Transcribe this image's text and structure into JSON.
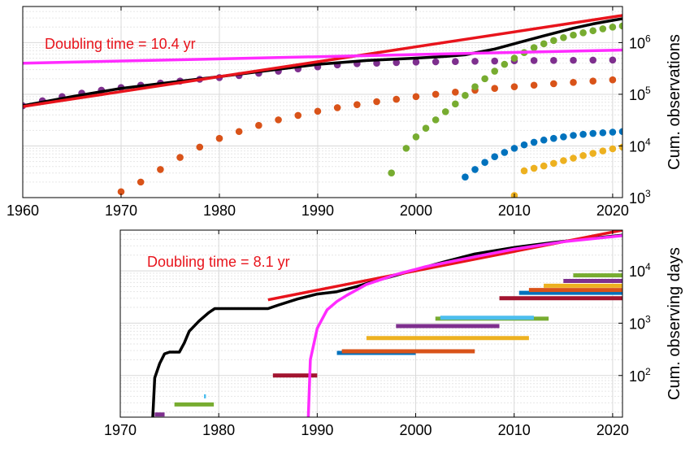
{
  "chart_data": [
    {
      "type": "scatter",
      "title": "",
      "xlabel": "",
      "ylabel": "Cum. observations",
      "xlim": [
        1960,
        2021
      ],
      "ylim": [
        1000,
        5000000
      ],
      "yscale": "log",
      "grid": true,
      "xticks": [
        "1960",
        "1970",
        "1980",
        "1990",
        "2000",
        "2010",
        "2020"
      ],
      "yticks": [
        {
          "base": "10",
          "exp": "3"
        },
        {
          "base": "10",
          "exp": "4"
        },
        {
          "base": "10",
          "exp": "5"
        },
        {
          "base": "10",
          "exp": "6"
        }
      ],
      "annotation": "Doubling time = 10.4 yr",
      "series": [
        {
          "color": "#7e2f8e",
          "kind": "points",
          "x": [
            1960,
            1962,
            1964,
            1966,
            1968,
            1970,
            1972,
            1974,
            1976,
            1978,
            1980,
            1982,
            1984,
            1986,
            1988,
            1990,
            1992,
            1994,
            1996,
            1998,
            2000,
            2002,
            2004,
            2006,
            2008,
            2010,
            2012,
            2014,
            2016,
            2018,
            2020
          ],
          "y": [
            60000,
            75000,
            90000,
            105000,
            120000,
            135000,
            150000,
            165000,
            180000,
            195000,
            210000,
            230000,
            255000,
            280000,
            310000,
            340000,
            370000,
            390000,
            400000,
            410000,
            420000,
            425000,
            430000,
            435000,
            440000,
            445000,
            450000,
            452000,
            455000,
            458000,
            460000
          ]
        },
        {
          "color": "#d95319",
          "kind": "points",
          "x": [
            1970,
            1972,
            1974,
            1976,
            1978,
            1980,
            1982,
            1984,
            1986,
            1988,
            1990,
            1992,
            1994,
            1996,
            1998,
            2000,
            2002,
            2004,
            2006,
            2008,
            2010,
            2012,
            2014,
            2016,
            2018,
            2020
          ],
          "y": [
            1300,
            2000,
            3500,
            6000,
            9500,
            14000,
            19000,
            25000,
            32000,
            39000,
            47000,
            55000,
            63000,
            72000,
            80000,
            90000,
            100000,
            110000,
            120000,
            130000,
            140000,
            150000,
            160000,
            170000,
            180000,
            190000
          ]
        },
        {
          "color": "#77ac30",
          "kind": "points",
          "x": [
            1997.5,
            1999,
            2000,
            2001,
            2002,
            2003,
            2004,
            2005,
            2006,
            2007,
            2008,
            2009,
            2010,
            2011,
            2012,
            2013,
            2014,
            2015,
            2016,
            2017,
            2018,
            2019,
            2020,
            2021
          ],
          "y": [
            3000,
            9000,
            15000,
            22000,
            32000,
            46000,
            65000,
            95000,
            140000,
            200000,
            280000,
            380000,
            500000,
            640000,
            800000,
            950000,
            1100000,
            1250000,
            1400000,
            1550000,
            1700000,
            1850000,
            2000000,
            2100000
          ]
        },
        {
          "color": "#0072bd",
          "kind": "points",
          "x": [
            2005,
            2006,
            2007,
            2008,
            2009,
            2010,
            2011,
            2012,
            2013,
            2014,
            2015,
            2016,
            2017,
            2018,
            2019,
            2020,
            2021
          ],
          "y": [
            2500,
            3500,
            4800,
            6200,
            7500,
            9000,
            10500,
            11800,
            13000,
            14000,
            15000,
            16000,
            16800,
            17500,
            18000,
            18500,
            19000
          ]
        },
        {
          "color": "#edb120",
          "kind": "points",
          "x": [
            2010,
            2011,
            2012,
            2013,
            2014,
            2015,
            2016,
            2017,
            2018,
            2019,
            2020,
            2021
          ],
          "y": [
            1100,
            3300,
            3700,
            4100,
            4600,
            5200,
            5800,
            6500,
            7200,
            8000,
            8800,
            9500
          ]
        },
        {
          "color": "#000000",
          "kind": "line",
          "x": [
            1960,
            1965,
            1970,
            1975,
            1980,
            1985,
            1990,
            1995,
            2000,
            2003,
            2005,
            2008,
            2010,
            2013,
            2016,
            2018,
            2020,
            2021
          ],
          "y": [
            60000,
            90000,
            130000,
            170000,
            220000,
            290000,
            380000,
            450000,
            500000,
            540000,
            580000,
            750000,
            950000,
            1350000,
            1900000,
            2300000,
            2700000,
            2900000
          ]
        },
        {
          "color": "#e8141c",
          "kind": "line",
          "x": [
            1960,
            2021
          ],
          "y": [
            58000,
            3350000
          ]
        },
        {
          "color": "#ff2bff",
          "kind": "line",
          "x": [
            1960,
            2021
          ],
          "y": [
            400000,
            720000
          ]
        }
      ]
    },
    {
      "type": "line",
      "title": "",
      "xlabel": "",
      "ylabel": "Cum. observing days",
      "xlim": [
        1970,
        2021
      ],
      "ylim": [
        16,
        60000
      ],
      "yscale": "log",
      "grid": true,
      "xticks": [
        "1970",
        "1980",
        "1990",
        "2000",
        "2010",
        "2020"
      ],
      "yticks": [
        {
          "base": "10",
          "exp": "2"
        },
        {
          "base": "10",
          "exp": "3"
        },
        {
          "base": "10",
          "exp": "4"
        }
      ],
      "annotation": "Doubling time = 8.1 yr",
      "series": [
        {
          "color": "#000000",
          "kind": "line",
          "x": [
            1973.3,
            1973.5,
            1974,
            1974.5,
            1975,
            1975.5,
            1976,
            1976.5,
            1977,
            1978,
            1979,
            1979.6,
            1980,
            1982,
            1984,
            1985,
            1986,
            1988,
            1990,
            1992,
            1994,
            1996,
            1998,
            2000,
            2003,
            2006,
            2010,
            2014,
            2018,
            2021
          ],
          "y": [
            16,
            90,
            170,
            260,
            280,
            280,
            280,
            420,
            700,
            1100,
            1600,
            1900,
            1900,
            1900,
            1900,
            1900,
            2200,
            2900,
            3600,
            4000,
            5000,
            6500,
            8200,
            10500,
            15000,
            21000,
            28000,
            35000,
            42000,
            48000
          ]
        },
        {
          "color": "#e8141c",
          "kind": "line",
          "x": [
            1985,
            2021
          ],
          "y": [
            2800,
            60000
          ]
        },
        {
          "color": "#ff2bff",
          "kind": "line",
          "x": [
            1989.1,
            1989.3,
            1990,
            1991,
            1992,
            1993,
            1995,
            1998,
            2001,
            2005,
            2010,
            2015,
            2021
          ],
          "y": [
            16,
            200,
            800,
            1800,
            2600,
            3400,
            5500,
            8500,
            12000,
            17000,
            26000,
            36000,
            47000
          ]
        }
      ],
      "bars": [
        {
          "color": "#7e2f8e",
          "start": 1973.5,
          "end": 1974.5,
          "y": 18
        },
        {
          "color": "#77ac30",
          "start": 1975.5,
          "end": 1979.5,
          "y": 28
        },
        {
          "color": "#4dbeee",
          "start": 1978.5,
          "end": 1978.7,
          "y": 40
        },
        {
          "color": "#a2142f",
          "start": 1985.5,
          "end": 1990,
          "y": 100
        },
        {
          "color": "#0072bd",
          "start": 1992,
          "end": 2000,
          "y": 270
        },
        {
          "color": "#d95319",
          "start": 1992.5,
          "end": 2006,
          "y": 290
        },
        {
          "color": "#edb120",
          "start": 1995,
          "end": 2011.5,
          "y": 520
        },
        {
          "color": "#7e2f8e",
          "start": 1998,
          "end": 2008.5,
          "y": 880
        },
        {
          "color": "#77ac30",
          "start": 2002,
          "end": 2013.5,
          "y": 1220
        },
        {
          "color": "#4dbeee",
          "start": 2002.5,
          "end": 2012,
          "y": 1270
        },
        {
          "color": "#a2142f",
          "start": 2008.5,
          "end": 2021,
          "y": 3000
        },
        {
          "color": "#0072bd",
          "start": 2010.5,
          "end": 2021,
          "y": 3800
        },
        {
          "color": "#d95319",
          "start": 2011.5,
          "end": 2021,
          "y": 4300
        },
        {
          "color": "#edb120",
          "start": 2013,
          "end": 2021,
          "y": 5200
        },
        {
          "color": "#7e2f8e",
          "start": 2015,
          "end": 2021,
          "y": 6400
        },
        {
          "color": "#77ac30",
          "start": 2016,
          "end": 2021,
          "y": 8200
        }
      ]
    }
  ]
}
